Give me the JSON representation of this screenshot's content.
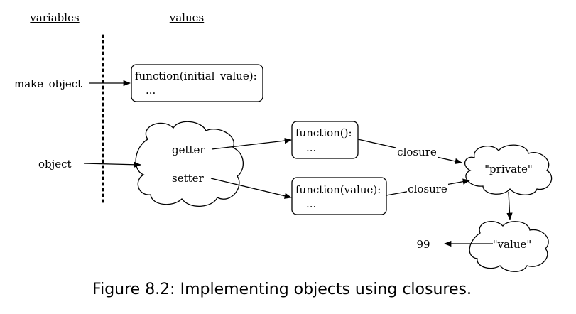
{
  "headers": {
    "variables": "variables",
    "values": "values"
  },
  "variables": {
    "make_object": "make_object",
    "object": "object"
  },
  "boxes": {
    "make_object_fn": {
      "line1": "function(initial_value):",
      "line2": "..."
    },
    "getter_fn": {
      "line1": "function():",
      "line2": "..."
    },
    "setter_fn": {
      "line1": "function(value):",
      "line2": "..."
    }
  },
  "clouds": {
    "object": {
      "getter": "getter",
      "setter": "setter"
    },
    "private": "\"private\"",
    "value": "\"value\""
  },
  "edge_labels": {
    "closure_top": "closure",
    "closure_bottom": "closure"
  },
  "number": "99",
  "caption": "Figure 8.2: Implementing objects using closures."
}
